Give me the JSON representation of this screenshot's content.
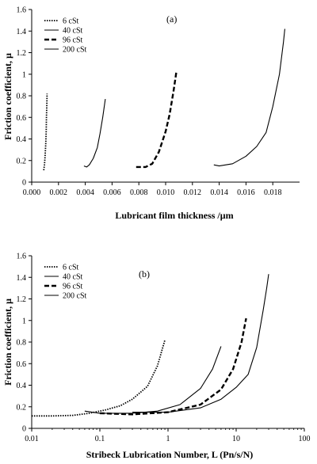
{
  "chart_data": [
    {
      "panel": "(a)",
      "type": "line",
      "xscale": "linear",
      "xlabel": "Lubricant film thickness /μm",
      "ylabel": "Friction coefficient, μ",
      "xlim": [
        0,
        0.02
      ],
      "ylim": [
        0,
        1.6
      ],
      "x_ticks": [
        "0.000",
        "0.002",
        "0.004",
        "0.006",
        "0.008",
        "0.010",
        "0.012",
        "0.014",
        "0.016",
        "0.018"
      ],
      "y_ticks": [
        "0",
        "0.2",
        "0.4",
        "0.6",
        "0.8",
        "1",
        "1.2",
        "1.4",
        "1.6"
      ],
      "x_tick_values": [
        0,
        0.002,
        0.004,
        0.006,
        0.008,
        0.01,
        0.012,
        0.014,
        0.016,
        0.018
      ],
      "y_tick_values": [
        0,
        0.2,
        0.4,
        0.6,
        0.8,
        1.0,
        1.2,
        1.4,
        1.6
      ],
      "grid": false,
      "legend_position": "top-left",
      "series": [
        {
          "name": "6 cSt",
          "style": "dotted",
          "points": [
            [
              0.0009,
              0.11
            ],
            [
              0.00095,
              0.16
            ],
            [
              0.001,
              0.24
            ],
            [
              0.00105,
              0.35
            ],
            [
              0.00108,
              0.47
            ],
            [
              0.0011,
              0.6
            ],
            [
              0.00113,
              0.72
            ],
            [
              0.00115,
              0.82
            ]
          ]
        },
        {
          "name": "40 cSt",
          "style": "solid",
          "points": [
            [
              0.0039,
              0.15
            ],
            [
              0.0041,
              0.14
            ],
            [
              0.0043,
              0.16
            ],
            [
              0.0046,
              0.22
            ],
            [
              0.0049,
              0.32
            ],
            [
              0.0051,
              0.45
            ],
            [
              0.0053,
              0.6
            ],
            [
              0.0055,
              0.77
            ]
          ]
        },
        {
          "name": "96 cSt",
          "style": "dashed",
          "points": [
            [
              0.0078,
              0.14
            ],
            [
              0.0085,
              0.14
            ],
            [
              0.009,
              0.17
            ],
            [
              0.0095,
              0.28
            ],
            [
              0.01,
              0.47
            ],
            [
              0.0103,
              0.63
            ],
            [
              0.0106,
              0.85
            ],
            [
              0.0108,
              1.02
            ]
          ]
        },
        {
          "name": "200 cSt",
          "style": "solid",
          "points": [
            [
              0.0136,
              0.16
            ],
            [
              0.014,
              0.15
            ],
            [
              0.015,
              0.17
            ],
            [
              0.016,
              0.24
            ],
            [
              0.0168,
              0.33
            ],
            [
              0.0175,
              0.46
            ],
            [
              0.018,
              0.7
            ],
            [
              0.0185,
              1.0
            ],
            [
              0.0188,
              1.3
            ],
            [
              0.0189,
              1.42
            ]
          ]
        }
      ]
    },
    {
      "panel": "(b)",
      "type": "line",
      "xscale": "log",
      "xlabel": "Stribeck Lubrication Number, L (Pn/s/N)",
      "ylabel": "Friction coefficient, μ",
      "xlim": [
        0.01,
        100
      ],
      "ylim": [
        0,
        1.6
      ],
      "x_ticks": [
        "0.01",
        "0.1",
        "1",
        "10",
        "100"
      ],
      "y_ticks": [
        "0",
        "0.2",
        "0.4",
        "0.6",
        "0.8",
        "1",
        "1.2",
        "1.4",
        "1.6"
      ],
      "x_tick_values": [
        0.01,
        0.1,
        1,
        10,
        100
      ],
      "y_tick_values": [
        0,
        0.2,
        0.4,
        0.6,
        0.8,
        1.0,
        1.2,
        1.4,
        1.6
      ],
      "grid": false,
      "legend_position": "top-left",
      "series": [
        {
          "name": "6 cSt",
          "style": "dotted",
          "points": [
            [
              0.01,
              0.115
            ],
            [
              0.02,
              0.115
            ],
            [
              0.04,
              0.12
            ],
            [
              0.07,
              0.14
            ],
            [
              0.12,
              0.17
            ],
            [
              0.2,
              0.21
            ],
            [
              0.3,
              0.27
            ],
            [
              0.5,
              0.39
            ],
            [
              0.7,
              0.58
            ],
            [
              0.9,
              0.82
            ]
          ]
        },
        {
          "name": "40 cSt",
          "style": "solid",
          "points": [
            [
              0.06,
              0.16
            ],
            [
              0.1,
              0.14
            ],
            [
              0.3,
              0.14
            ],
            [
              0.7,
              0.16
            ],
            [
              1.5,
              0.22
            ],
            [
              3,
              0.37
            ],
            [
              4.5,
              0.55
            ],
            [
              6,
              0.76
            ]
          ]
        },
        {
          "name": "96 cSt",
          "style": "dashed",
          "points": [
            [
              0.1,
              0.14
            ],
            [
              0.3,
              0.13
            ],
            [
              1,
              0.15
            ],
            [
              3,
              0.22
            ],
            [
              6,
              0.36
            ],
            [
              9,
              0.55
            ],
            [
              12,
              0.8
            ],
            [
              14,
              1.02
            ]
          ]
        },
        {
          "name": "200 cSt",
          "style": "solid",
          "points": [
            [
              0.3,
              0.15
            ],
            [
              1,
              0.15
            ],
            [
              3,
              0.19
            ],
            [
              6,
              0.27
            ],
            [
              10,
              0.38
            ],
            [
              15,
              0.5
            ],
            [
              20,
              0.75
            ],
            [
              25,
              1.1
            ],
            [
              28,
              1.3
            ],
            [
              30,
              1.43
            ]
          ]
        }
      ]
    }
  ]
}
